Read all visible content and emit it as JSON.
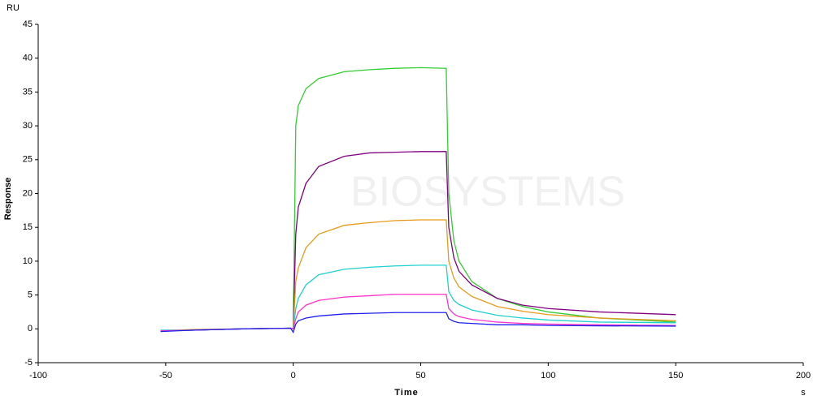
{
  "chart_data": {
    "type": "line",
    "y_unit": "RU",
    "ylabel": "Response",
    "xlabel": "Time",
    "x_unit": "s",
    "watermark": "BIOSYSTEMS",
    "xlim": [
      -100,
      200
    ],
    "xticks": [
      -100,
      -50,
      0,
      50,
      100,
      150,
      200
    ],
    "ylim": [
      -5,
      45
    ],
    "yticks": [
      -5,
      0,
      5,
      10,
      15,
      20,
      25,
      30,
      35,
      40,
      45
    ],
    "x": [
      -52,
      -40,
      -20,
      -1,
      0,
      1,
      2,
      5,
      10,
      20,
      30,
      40,
      50,
      60,
      61,
      63,
      65,
      70,
      80,
      90,
      100,
      120,
      150
    ],
    "series": [
      {
        "color": "#33cc33",
        "values": [
          -0.3,
          -0.2,
          0,
          0.1,
          0,
          30,
          33,
          35.5,
          37,
          38,
          38.3,
          38.5,
          38.6,
          38.5,
          20,
          13,
          10,
          7,
          4.5,
          3.3,
          2.5,
          1.6,
          1.0
        ]
      },
      {
        "color": "#800080",
        "values": [
          -0.2,
          -0.2,
          0,
          0.1,
          0,
          14,
          18,
          21.5,
          24,
          25.5,
          26,
          26.1,
          26.2,
          26.2,
          15,
          10.5,
          8.5,
          6.5,
          4.5,
          3.5,
          3,
          2.5,
          2.1
        ]
      },
      {
        "color": "#e69b1a",
        "values": [
          -0.3,
          -0.1,
          0,
          0.1,
          0,
          7,
          9,
          12,
          14,
          15.3,
          15.7,
          16,
          16.1,
          16.1,
          10,
          7.5,
          6.2,
          4.8,
          3.3,
          2.6,
          2.1,
          1.6,
          1.2
        ]
      },
      {
        "color": "#20d0d0",
        "values": [
          -0.2,
          -0.2,
          0,
          0.1,
          0,
          3,
          4.5,
          6.5,
          8,
          8.8,
          9.1,
          9.3,
          9.4,
          9.4,
          5.5,
          4.2,
          3.6,
          2.8,
          2,
          1.6,
          1.3,
          1,
          0.9
        ]
      },
      {
        "color": "#ff33cc",
        "values": [
          -0.3,
          -0.2,
          0,
          0.1,
          0,
          1.5,
          2.5,
          3.5,
          4.2,
          4.7,
          4.9,
          5.1,
          5.1,
          5.1,
          3,
          2.2,
          1.8,
          1.4,
          1.0,
          0.8,
          0.7,
          0.6,
          0.5
        ]
      },
      {
        "color": "#2020ee",
        "values": [
          -0.4,
          -0.2,
          0,
          0.1,
          -0.5,
          0.7,
          1.2,
          1.6,
          1.9,
          2.2,
          2.3,
          2.4,
          2.4,
          2.4,
          1.5,
          1.1,
          0.9,
          0.8,
          0.6,
          0.6,
          0.5,
          0.45,
          0.4
        ]
      }
    ]
  }
}
